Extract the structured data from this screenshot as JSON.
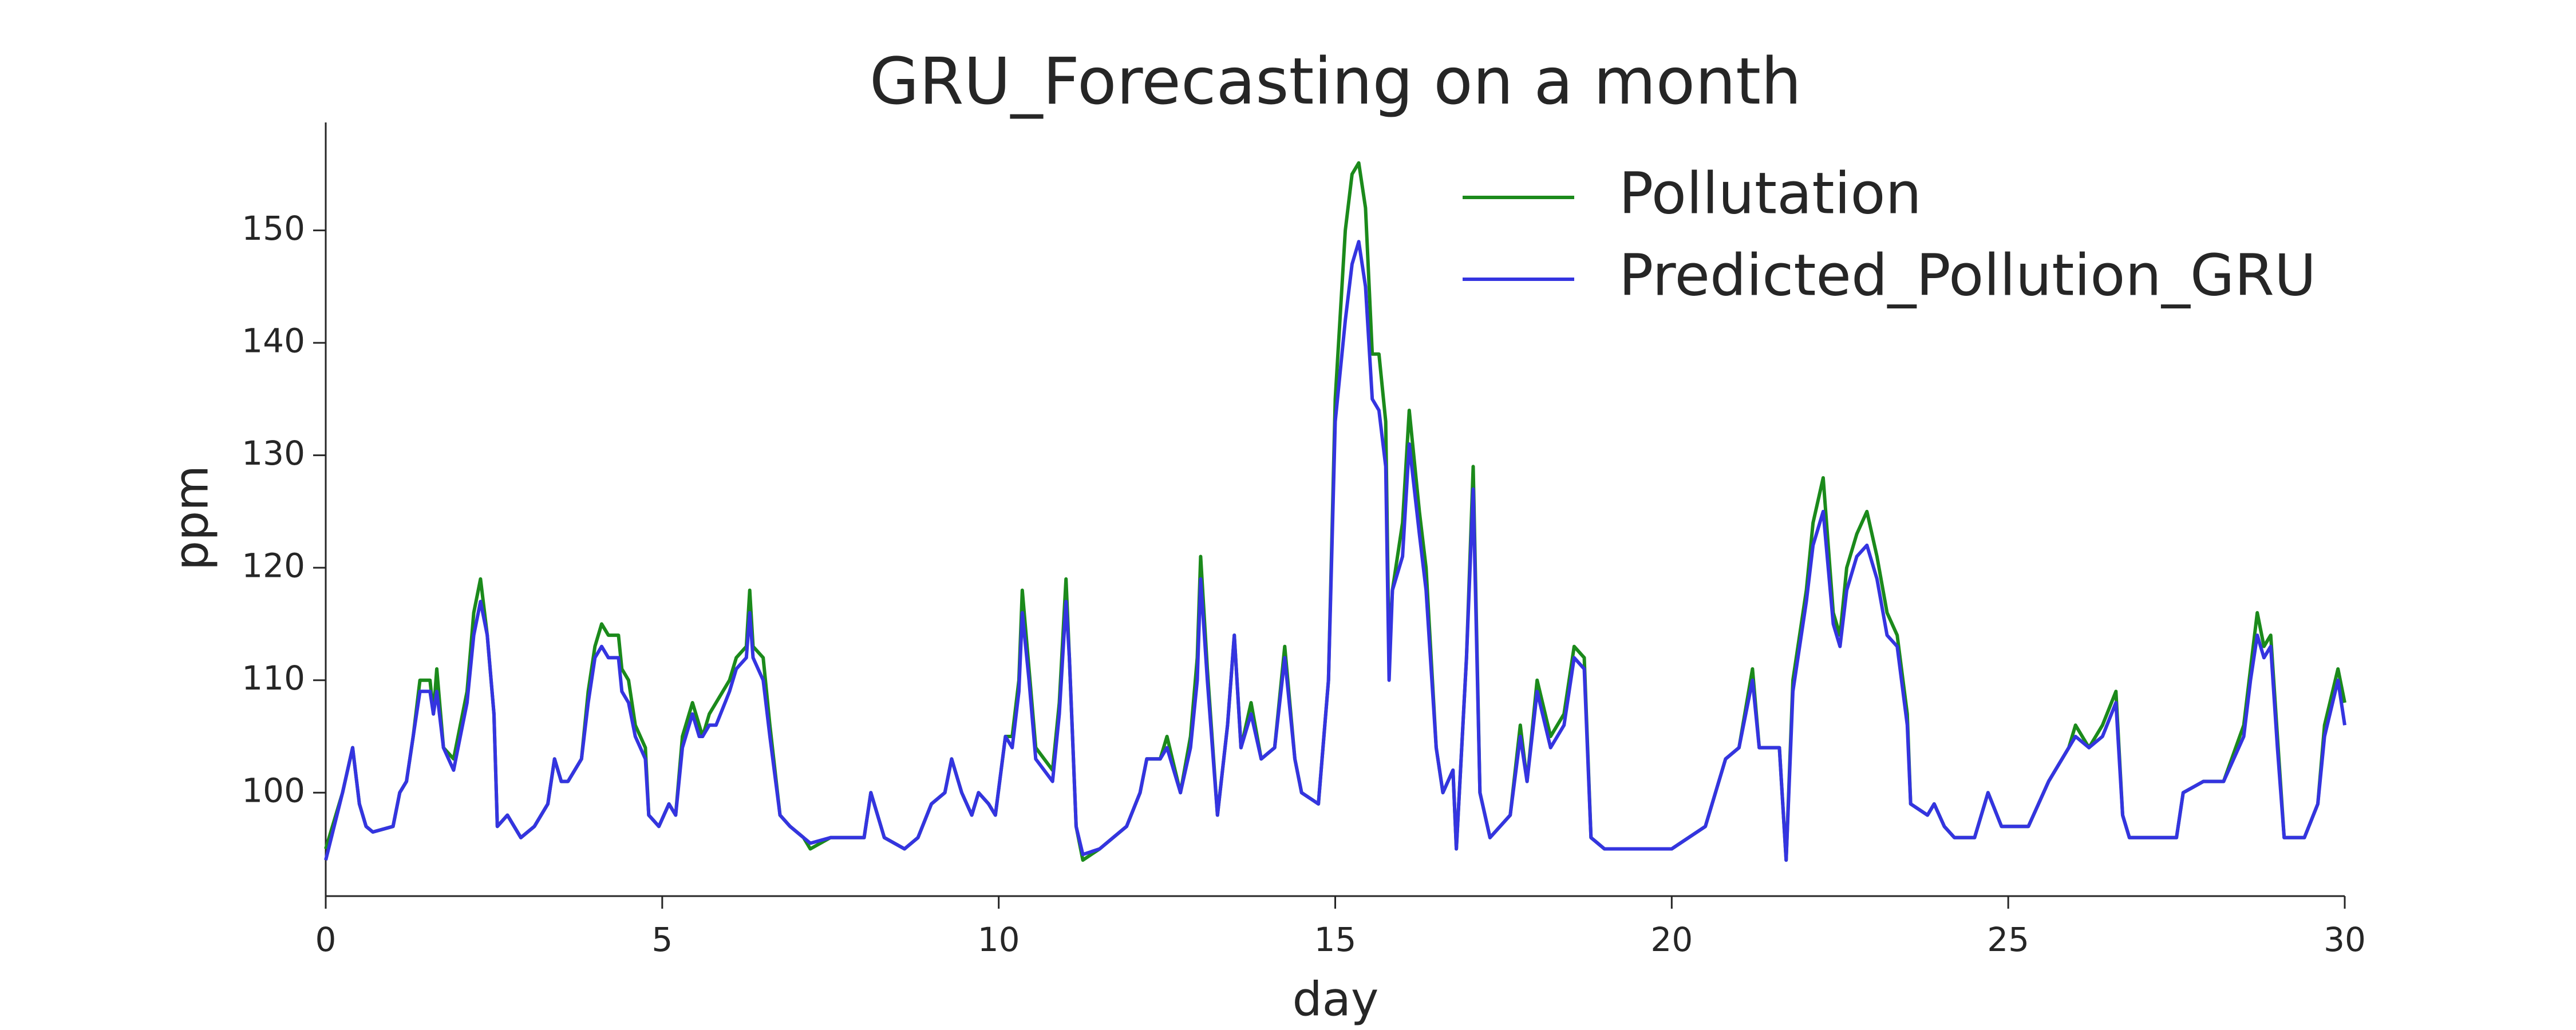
{
  "chart_data": {
    "type": "line",
    "title": "GRU_Forecasting on a month",
    "x_label": "day",
    "y_label": "ppm",
    "x": [
      0,
      0.25,
      0.4,
      0.5,
      0.6,
      0.7,
      1.0,
      1.1,
      1.2,
      1.3,
      1.4,
      1.55,
      1.6,
      1.65,
      1.75,
      1.9,
      2.0,
      2.1,
      2.2,
      2.3,
      2.4,
      2.5,
      2.55,
      2.7,
      2.9,
      3.1,
      3.3,
      3.4,
      3.5,
      3.6,
      3.8,
      3.9,
      4.0,
      4.1,
      4.2,
      4.35,
      4.4,
      4.5,
      4.6,
      4.75,
      4.8,
      4.95,
      5.1,
      5.2,
      5.3,
      5.45,
      5.55,
      5.6,
      5.7,
      5.8,
      6.0,
      6.1,
      6.25,
      6.3,
      6.35,
      6.5,
      6.6,
      6.75,
      6.9,
      7.1,
      7.2,
      7.5,
      8.0,
      8.1,
      8.3,
      8.6,
      8.8,
      9.0,
      9.2,
      9.3,
      9.45,
      9.6,
      9.7,
      9.85,
      9.95,
      10.1,
      10.2,
      10.3,
      10.35,
      10.45,
      10.55,
      10.8,
      10.9,
      11.0,
      11.05,
      11.15,
      11.25,
      11.5,
      11.7,
      11.9,
      12.1,
      12.2,
      12.4,
      12.5,
      12.7,
      12.85,
      12.95,
      13.0,
      13.1,
      13.25,
      13.4,
      13.5,
      13.6,
      13.75,
      13.9,
      14.1,
      14.25,
      14.4,
      14.5,
      14.75,
      14.9,
      15.0,
      15.15,
      15.25,
      15.35,
      15.45,
      15.55,
      15.65,
      15.75,
      15.8,
      15.85,
      16.0,
      16.1,
      16.25,
      16.35,
      16.5,
      16.6,
      16.75,
      16.8,
      16.95,
      17.05,
      17.15,
      17.3,
      17.6,
      17.75,
      17.85,
      18.0,
      18.2,
      18.4,
      18.55,
      18.7,
      18.8,
      19.0,
      20.0,
      20.5,
      20.8,
      21.0,
      21.2,
      21.3,
      21.6,
      21.7,
      21.8,
      22.0,
      22.1,
      22.25,
      22.4,
      22.5,
      22.6,
      22.75,
      22.9,
      23.05,
      23.2,
      23.35,
      23.5,
      23.55,
      23.8,
      23.9,
      24.05,
      24.2,
      24.5,
      24.7,
      24.9,
      25.3,
      25.6,
      25.9,
      26.0,
      26.2,
      26.4,
      26.6,
      26.7,
      26.8,
      27.5,
      27.6,
      27.9,
      28.2,
      28.5,
      28.6,
      28.7,
      28.8,
      28.9,
      29.0,
      29.1,
      29.4,
      29.6,
      29.7,
      29.9,
      30.0
    ],
    "series": [
      {
        "name": "Pollutation",
        "color": "#1b8a1b",
        "values": [
          95,
          100,
          104,
          99,
          97,
          96.5,
          97,
          100,
          101,
          105,
          110,
          110,
          107,
          111,
          104,
          103,
          106,
          109,
          116,
          119,
          114,
          107,
          97,
          98,
          96,
          97,
          99,
          103,
          101,
          101,
          103,
          109,
          113,
          115,
          114,
          114,
          111,
          110,
          106,
          104,
          98,
          97,
          99,
          98,
          105,
          108,
          106,
          105,
          107,
          108,
          110,
          112,
          113,
          118,
          113,
          112,
          106,
          98,
          97,
          96,
          95,
          96,
          96,
          100,
          96,
          95,
          96,
          99,
          100,
          103,
          100,
          98,
          100,
          99,
          98,
          105,
          105,
          110,
          118,
          111,
          104,
          102,
          108,
          119,
          112,
          97,
          94,
          95,
          96,
          97,
          100,
          103,
          103,
          105,
          100,
          105,
          112,
          121,
          111,
          98,
          106,
          114,
          104,
          108,
          103,
          104,
          113,
          103,
          100,
          99,
          110,
          135,
          150,
          155,
          156,
          152,
          139,
          139,
          133,
          112,
          118,
          124,
          134,
          125,
          120,
          104,
          100,
          102,
          95,
          112,
          129,
          100,
          96,
          98,
          106,
          101,
          110,
          105,
          107,
          113,
          112,
          96,
          95,
          95,
          97,
          103,
          104,
          111,
          104,
          104,
          94,
          110,
          118,
          124,
          128,
          116,
          114,
          120,
          123,
          125,
          121,
          116,
          114,
          107,
          99,
          98,
          99,
          97,
          96,
          96,
          100,
          97,
          97,
          101,
          104,
          106,
          104,
          106,
          109,
          98,
          96,
          96,
          100,
          101,
          101,
          106,
          111,
          116,
          113,
          114,
          105,
          96,
          96,
          99,
          106,
          111,
          108
        ]
      },
      {
        "name": "Predicted_Pollution_GRU",
        "color": "#3434e0",
        "values": [
          94,
          100,
          104,
          99,
          97,
          96.5,
          97,
          100,
          101,
          105,
          109,
          109,
          107,
          109,
          104,
          102,
          105,
          108,
          114,
          117,
          114,
          107,
          97,
          98,
          96,
          97,
          99,
          103,
          101,
          101,
          103,
          108,
          112,
          113,
          112,
          112,
          109,
          108,
          105,
          103,
          98,
          97,
          99,
          98,
          104,
          107,
          105,
          105,
          106,
          106,
          109,
          111,
          112,
          116,
          112,
          110,
          105,
          98,
          97,
          96,
          95.5,
          96,
          96,
          100,
          96,
          95,
          96,
          99,
          100,
          103,
          100,
          98,
          100,
          99,
          98,
          105,
          104,
          109,
          116,
          110,
          103,
          101,
          107,
          117,
          112,
          97,
          94.5,
          95,
          96,
          97,
          100,
          103,
          103,
          104,
          100,
          104,
          110,
          119,
          110,
          98,
          106,
          114,
          104,
          107,
          103,
          104,
          112,
          103,
          100,
          99,
          110,
          133,
          142,
          147,
          149,
          145,
          135,
          134,
          129,
          110,
          118,
          121,
          131,
          123,
          118,
          104,
          100,
          102,
          95,
          112,
          127,
          100,
          96,
          98,
          105,
          101,
          109,
          104,
          106,
          112,
          111,
          96,
          95,
          95,
          97,
          103,
          104,
          110,
          104,
          104,
          94,
          109,
          117,
          122,
          125,
          115,
          113,
          118,
          121,
          122,
          119,
          114,
          113,
          106,
          99,
          98,
          99,
          97,
          96,
          96,
          100,
          97,
          97,
          101,
          104,
          105,
          104,
          105,
          108,
          98,
          96,
          96,
          100,
          101,
          101,
          105,
          110,
          114,
          112,
          113,
          104,
          96,
          96,
          99,
          105,
          110,
          106
        ]
      }
    ],
    "xlim": [
      0,
      30
    ],
    "xticks": [
      0,
      5,
      10,
      15,
      20,
      25,
      30
    ],
    "ylim": [
      90.8,
      159.6
    ],
    "yticks": [
      100,
      110,
      120,
      130,
      140,
      150
    ],
    "grid": false,
    "legend": "upper right"
  }
}
